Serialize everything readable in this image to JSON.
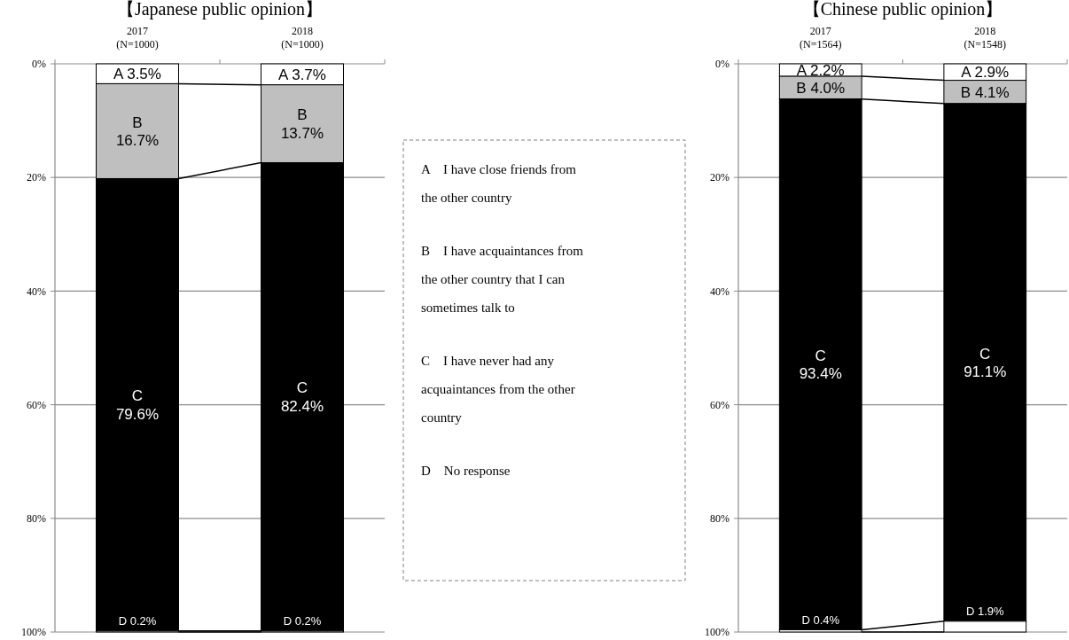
{
  "chart_data": [
    {
      "type": "bar",
      "title": "【Japanese public opinion】",
      "stacked": true,
      "categories": [
        "2017\n(N=1000)",
        "2018\n(N=1000)"
      ],
      "series": [
        {
          "color": "#ffffff",
          "values": [
            3.5,
            3.7
          ],
          "value_labels": [
            "A 3.5%",
            "A 3.7%"
          ]
        },
        {
          "color": "#bfbfbf",
          "values": [
            16.7,
            13.7
          ],
          "value_labels": [
            "B\n16.7%",
            "B\n13.7%"
          ]
        },
        {
          "color": "#000000",
          "values": [
            79.6,
            82.4
          ],
          "value_labels": [
            "C\n79.6%",
            "C\n82.4%"
          ]
        },
        {
          "color": "#ffffff",
          "values": [
            0.2,
            0.2
          ],
          "value_labels": [
            "D 0.2%",
            "D 0.2%"
          ]
        }
      ],
      "ylim": [
        100,
        0
      ],
      "yticks": [
        {
          "value": 0,
          "label": "0%"
        },
        {
          "value": 20,
          "label": "20%"
        },
        {
          "value": 40,
          "label": "40%"
        },
        {
          "value": 60,
          "label": "60%"
        },
        {
          "value": 80,
          "label": "80%"
        },
        {
          "value": 100,
          "label": "100%"
        }
      ],
      "grid": "y"
    },
    {
      "type": "other",
      "annotations": [
        "A　I have close friends from the other country",
        "B　I have acquaintances from the other country that I can sometimes talk to",
        "C　I have never had any acquaintances from the other country",
        "D　No response"
      ]
    },
    {
      "type": "bar",
      "title": "【Chinese public opinion】",
      "stacked": true,
      "categories": [
        "2017\n(N=1564)",
        "2018\n(N=1548)"
      ],
      "series": [
        {
          "color": "#ffffff",
          "values": [
            2.2,
            2.9
          ],
          "value_labels": [
            "A 2.2%",
            "A 2.9%"
          ]
        },
        {
          "color": "#bfbfbf",
          "values": [
            4.0,
            4.1
          ],
          "value_labels": [
            "B 4.0%",
            "B 4.1%"
          ]
        },
        {
          "color": "#000000",
          "values": [
            93.4,
            91.1
          ],
          "value_labels": [
            "C\n93.4%",
            "C\n91.1%"
          ]
        },
        {
          "color": "#ffffff",
          "values": [
            0.4,
            1.9
          ],
          "value_labels": [
            "D 0.4%",
            "D 1.9%"
          ]
        }
      ],
      "ylim": [
        100,
        0
      ],
      "yticks": [
        {
          "value": 0,
          "label": "0%"
        },
        {
          "value": 20,
          "label": "20%"
        },
        {
          "value": 40,
          "label": "40%"
        },
        {
          "value": 60,
          "label": "60%"
        },
        {
          "value": 80,
          "label": "80%"
        },
        {
          "value": 100,
          "label": "100%"
        }
      ],
      "grid": "y"
    }
  ]
}
